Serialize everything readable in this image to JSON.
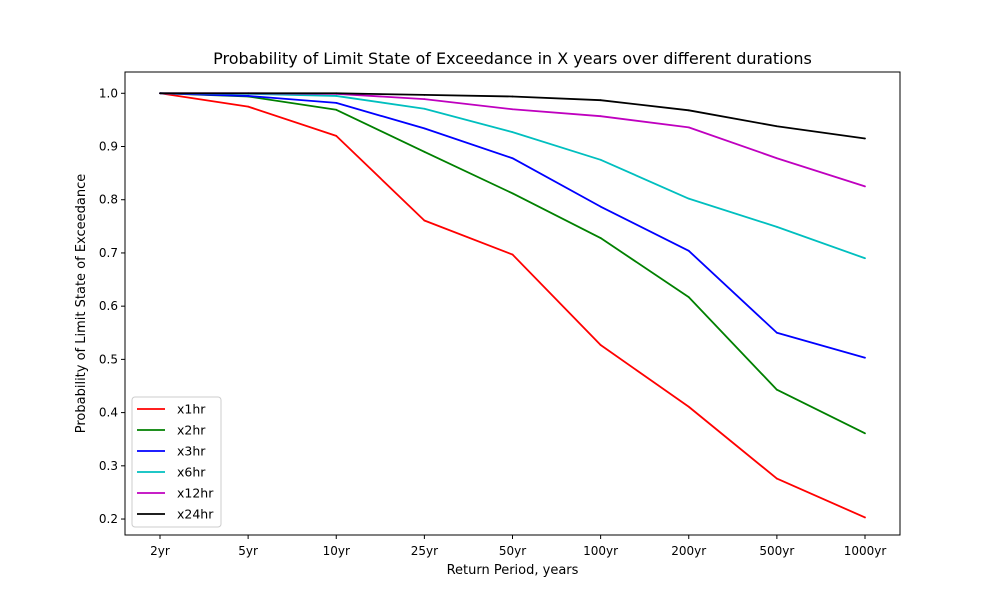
{
  "chart_data": {
    "type": "line",
    "title": "Probability of Limit State of Exceedance in X years over different durations",
    "xlabel": "Return Period, years",
    "ylabel": "Probability of Limit State of Exceedance",
    "categories": [
      "2yr",
      "5yr",
      "10yr",
      "25yr",
      "50yr",
      "100yr",
      "200yr",
      "500yr",
      "1000yr"
    ],
    "ylim": [
      0.17,
      1.04
    ],
    "yticks": [
      "0.2",
      "0.3",
      "0.4",
      "0.5",
      "0.6",
      "0.7",
      "0.8",
      "0.9",
      "1.0"
    ],
    "grid": false,
    "legend_position": "lower-left",
    "series": [
      {
        "name": "x1hr",
        "color": "#ff0000",
        "values": [
          1.0,
          0.975,
          0.92,
          0.761,
          0.697,
          0.527,
          0.411,
          0.276,
          0.203
        ]
      },
      {
        "name": "x2hr",
        "color": "#008000",
        "values": [
          1.0,
          0.994,
          0.969,
          0.89,
          0.812,
          0.728,
          0.617,
          0.443,
          0.361
        ]
      },
      {
        "name": "x3hr",
        "color": "#0000ff",
        "values": [
          1.0,
          0.995,
          0.982,
          0.934,
          0.878,
          0.787,
          0.704,
          0.55,
          0.503
        ]
      },
      {
        "name": "x6hr",
        "color": "#00bfbf",
        "values": [
          1.0,
          0.999,
          0.995,
          0.971,
          0.927,
          0.875,
          0.802,
          0.749,
          0.69
        ]
      },
      {
        "name": "x12hr",
        "color": "#bf00bf",
        "values": [
          1.0,
          1.0,
          0.999,
          0.989,
          0.97,
          0.957,
          0.936,
          0.878,
          0.825
        ]
      },
      {
        "name": "x24hr",
        "color": "#000000",
        "values": [
          1.0,
          1.0,
          1.0,
          0.997,
          0.994,
          0.987,
          0.968,
          0.938,
          0.915
        ]
      }
    ]
  }
}
